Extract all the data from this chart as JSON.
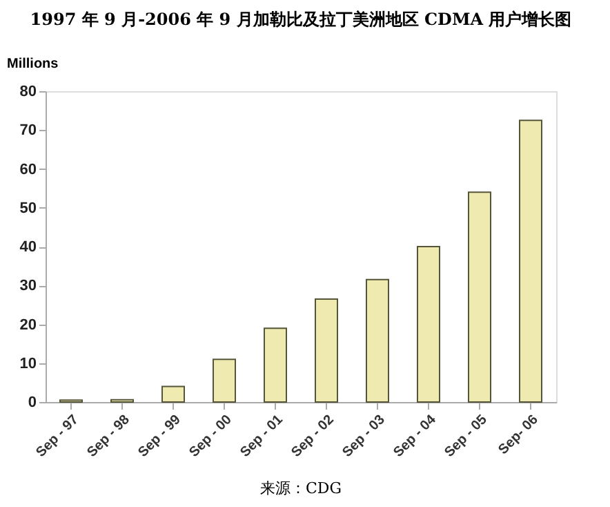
{
  "chart_data": {
    "type": "bar",
    "title": "1997 年 9 月-2006 年 9 月加勒比及拉丁美洲地区 CDMA 用户增长图",
    "ylabel": "Millions",
    "categories": [
      "Sep - 97",
      "Sep - 98",
      "Sep - 99",
      "Sep - 00",
      "Sep - 01",
      "Sep - 02",
      "Sep - 03",
      "Sep - 04",
      "Sep - 05",
      "Sep- 06"
    ],
    "values": [
      0.5,
      0.6,
      4,
      11,
      19,
      26.5,
      31.5,
      40,
      54,
      72.5
    ],
    "color": "#eeeab0",
    "ylim": [
      0,
      80
    ],
    "yticks": [
      0,
      10,
      20,
      30,
      40,
      50,
      60,
      70,
      80
    ],
    "grid": false,
    "annotations": [
      "来源：CDG"
    ]
  }
}
